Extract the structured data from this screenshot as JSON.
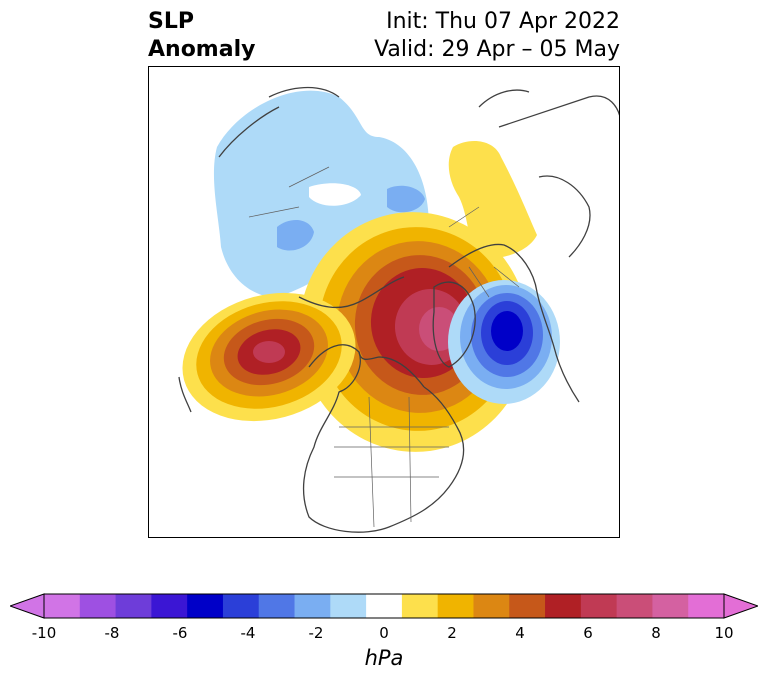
{
  "title": {
    "left_line1": "SLP",
    "left_line2": "Anomaly",
    "right_line1": "Init: Thu 07 Apr 2022",
    "right_line2": "Valid: 29 Apr – 05 May"
  },
  "map": {
    "projection": "north-polar-stereographic",
    "variable": "sea level pressure anomaly",
    "coastline_color": "#404040",
    "anomaly_centers": [
      {
        "region": "Gulf of Alaska / NE Pacific",
        "sign": "positive",
        "peak_hpa": 7
      },
      {
        "region": "Greenland / Arctic Canada",
        "sign": "positive",
        "peak_hpa": 7
      },
      {
        "region": "Scandinavia / Norwegian Sea",
        "sign": "negative",
        "peak_hpa": -5
      },
      {
        "region": "Central Russia / Kazakhstan",
        "sign": "positive",
        "peak_hpa": 1
      },
      {
        "region": "Western Siberia / Central Asia",
        "sign": "negative",
        "peak_hpa": -3
      }
    ]
  },
  "colorbar": {
    "units": "hPa",
    "tick_labels": [
      "-10",
      "-8",
      "-6",
      "-4",
      "-2",
      "0",
      "2",
      "4",
      "6",
      "8",
      "10"
    ],
    "levels": [
      -10,
      -9,
      -8,
      -7,
      -6,
      -5,
      -4,
      -3,
      -2,
      -1,
      1,
      2,
      3,
      4,
      5,
      6,
      7,
      8,
      9,
      10
    ],
    "colors": [
      "#d174e6",
      "#9e50e2",
      "#6e3dd9",
      "#3b16d4",
      "#0000c8",
      "#2b3fd8",
      "#5077e6",
      "#7aaef2",
      "#aedaf8",
      "#ffffff",
      "#fde04c",
      "#f0b400",
      "#dc8713",
      "#c6581a",
      "#b02025",
      "#c03a54",
      "#ca4e78",
      "#d461a1",
      "#e36ed6"
    ],
    "extend": "both",
    "extend_min_color": "#d174e6",
    "extend_max_color": "#e36ed6"
  }
}
